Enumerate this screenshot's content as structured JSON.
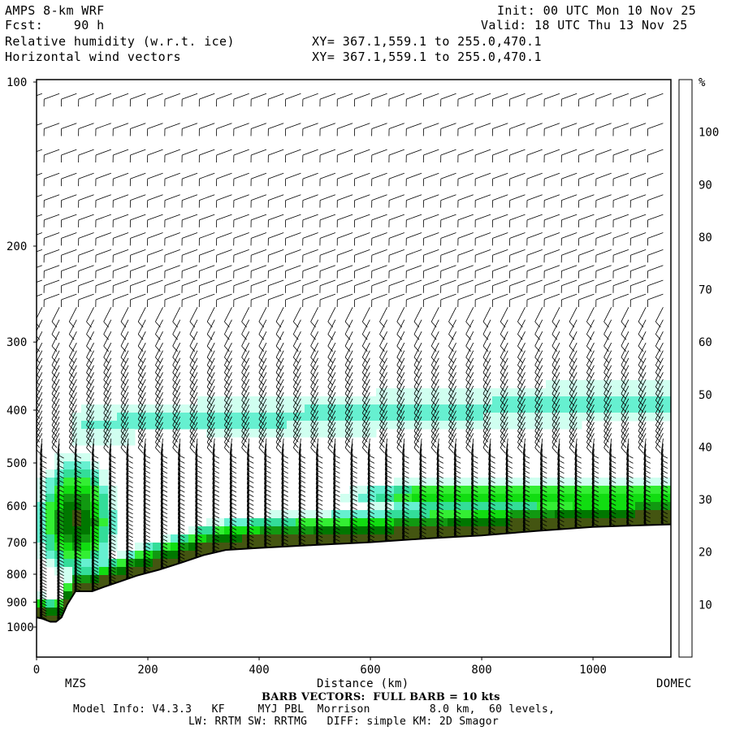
{
  "header": {
    "line1_left": "AMPS 8-km WRF",
    "line2_left": "Fcst:    90 h",
    "line1_right": "Init: 00 UTC Mon 10 Nov 25",
    "line2_right": "Valid: 18 UTC Thu 13 Nov 25",
    "field1_name": "Relative humidity (w.r.t. ice)",
    "field1_xy": "XY= 367.1,559.1 to 255.0,470.1",
    "field2_name": "Horizontal wind vectors",
    "field2_xy": "XY= 367.1,559.1 to 255.0,470.1"
  },
  "footer": {
    "barb_note": "BARB VECTORS:  FULL BARB = 10 kts",
    "model_info": "Model Info: V4.3.3   KF     MYJ PBL  Morrison         8.0 km,  60 levels,",
    "model_info2": "LW: RRTM SW: RRTMG   DIFF: simple KM: 2D Smagor"
  },
  "chart_data": {
    "type": "heatmap",
    "title": "Relative humidity (w.r.t. ice)",
    "overlay": "Horizontal wind vectors (barbs)",
    "xlabel": "Distance (km)",
    "ylabel": "",
    "x_endpoints": [
      "MZS",
      "DOMEC"
    ],
    "xlim": [
      0,
      1140
    ],
    "ylim": [
      1050,
      100
    ],
    "y_scale": "log-pressure",
    "x_ticks": [
      0,
      200,
      400,
      600,
      800,
      1000
    ],
    "y_ticks": [
      100,
      200,
      300,
      400,
      500,
      600,
      700,
      800,
      900,
      1000
    ],
    "colorbar": {
      "unit": "%",
      "levels": [
        10,
        20,
        30,
        40,
        50,
        60,
        70,
        80,
        90,
        100
      ],
      "colors": [
        "#ffffff",
        "#ffffff",
        "#ffffff",
        "#d0fff0",
        "#66f0d0",
        "#33dd99",
        "#33ee33",
        "#11dd11",
        "#119911",
        "#007700",
        "#445511"
      ]
    },
    "terrain_surface_pressure": [
      {
        "x": 0,
        "p": 960
      },
      {
        "x": 10,
        "p": 965
      },
      {
        "x": 25,
        "p": 978
      },
      {
        "x": 35,
        "p": 978
      },
      {
        "x": 45,
        "p": 960
      },
      {
        "x": 55,
        "p": 910
      },
      {
        "x": 70,
        "p": 860
      },
      {
        "x": 85,
        "p": 860
      },
      {
        "x": 100,
        "p": 860
      },
      {
        "x": 120,
        "p": 845
      },
      {
        "x": 150,
        "p": 825
      },
      {
        "x": 180,
        "p": 805
      },
      {
        "x": 220,
        "p": 785
      },
      {
        "x": 260,
        "p": 762
      },
      {
        "x": 300,
        "p": 738
      },
      {
        "x": 340,
        "p": 722
      },
      {
        "x": 400,
        "p": 716
      },
      {
        "x": 500,
        "p": 707
      },
      {
        "x": 600,
        "p": 699
      },
      {
        "x": 700,
        "p": 688
      },
      {
        "x": 800,
        "p": 679
      },
      {
        "x": 900,
        "p": 666
      },
      {
        "x": 1000,
        "p": 655
      },
      {
        "x": 1140,
        "p": 648
      }
    ],
    "rh_regions": [
      {
        "level": 30,
        "x": [
          60,
          1140
        ],
        "p": [
          330,
          660
        ]
      },
      {
        "level": 40,
        "x": [
          40,
          1140
        ],
        "p": [
          350,
          690
        ]
      },
      {
        "level": 60,
        "x": [
          0,
          1140
        ],
        "p": [
          470,
          720
        ]
      },
      {
        "level": 80,
        "x": [
          0,
          1140
        ],
        "p": [
          540,
          760
        ]
      },
      {
        "level": 100,
        "x": [
          0,
          1140
        ],
        "p": [
          560,
          950
        ]
      }
    ]
  }
}
